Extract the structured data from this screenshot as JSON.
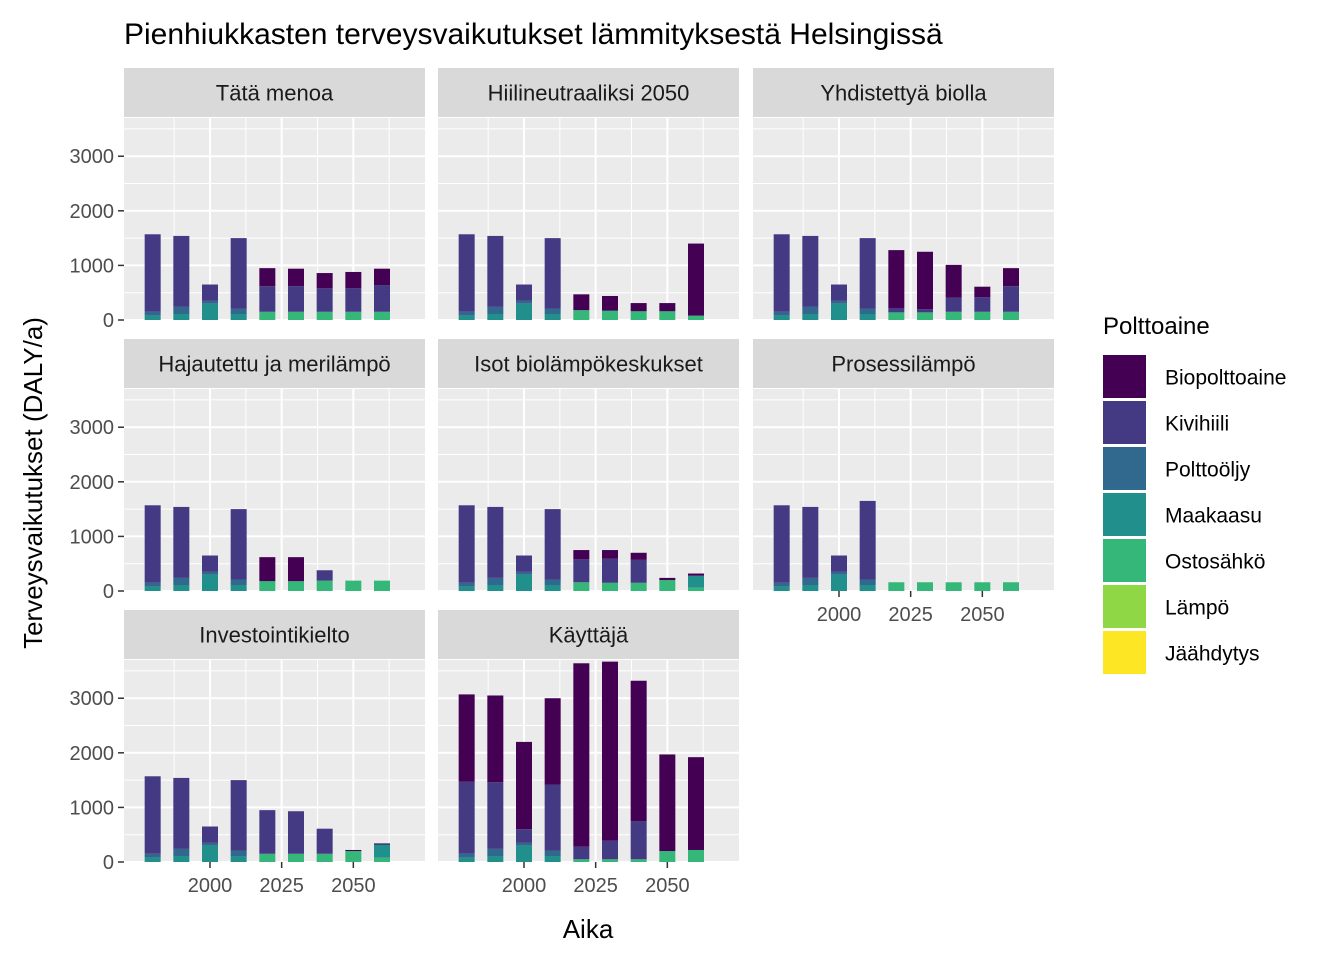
{
  "chart_data": {
    "type": "bar",
    "stacked": true,
    "title": "Pienhiukkasten terveysvaikutukset lämmityksestä Helsingissä",
    "xlabel": "Aika",
    "ylabel": "Terveysvaikutukset (DALY/a)",
    "ylim": [
      0,
      3700
    ],
    "yticks": [
      0,
      1000,
      2000,
      3000
    ],
    "xlim": [
      1970,
      2075
    ],
    "xticks": [
      2000,
      2025,
      2050
    ],
    "x": [
      1980,
      1990,
      2000,
      2010,
      2020,
      2030,
      2040,
      2050,
      2060
    ],
    "grid": true,
    "legend": {
      "title": "Polttoaine",
      "position": "right",
      "entries": [
        "Biopolttoaine",
        "Kivihiili",
        "Polttoöljy",
        "Maakaasu",
        "Ostosähkö",
        "Lämpö",
        "Jäähdytys"
      ]
    },
    "colors": {
      "Biopolttoaine": "#440154",
      "Kivihiili": "#443A83",
      "Polttoöljy": "#31688E",
      "Maakaasu": "#21908C",
      "Ostosähkö": "#35B779",
      "Lämpö": "#8FD744",
      "Jäähdytys": "#FDE725"
    },
    "panels": [
      {
        "title": "Tätä menoa",
        "series": [
          {
            "name": "Ostosähkö",
            "values": [
              0,
              0,
              0,
              0,
              150,
              150,
              150,
              150,
              150
            ]
          },
          {
            "name": "Maakaasu",
            "values": [
              80,
              110,
              300,
              110,
              0,
              0,
              0,
              0,
              0
            ]
          },
          {
            "name": "Polttoöljy",
            "values": [
              70,
              130,
              50,
              100,
              0,
              0,
              0,
              0,
              0
            ]
          },
          {
            "name": "Kivihiili",
            "values": [
              1420,
              1300,
              300,
              1290,
              470,
              470,
              430,
              430,
              490
            ]
          },
          {
            "name": "Biopolttoaine",
            "values": [
              0,
              0,
              0,
              0,
              330,
              320,
              280,
              300,
              300
            ]
          }
        ]
      },
      {
        "title": "Hiilineutraaliksi 2050",
        "series": [
          {
            "name": "Ostosähkö",
            "values": [
              0,
              0,
              0,
              0,
              180,
              170,
              160,
              160,
              80
            ]
          },
          {
            "name": "Maakaasu",
            "values": [
              80,
              110,
              300,
              110,
              0,
              0,
              0,
              0,
              0
            ]
          },
          {
            "name": "Polttoöljy",
            "values": [
              70,
              130,
              50,
              100,
              0,
              0,
              0,
              0,
              0
            ]
          },
          {
            "name": "Kivihiili",
            "values": [
              1420,
              1300,
              300,
              1290,
              0,
              0,
              0,
              0,
              0
            ]
          },
          {
            "name": "Biopolttoaine",
            "values": [
              0,
              0,
              0,
              0,
              290,
              270,
              150,
              150,
              1320
            ]
          }
        ]
      },
      {
        "title": "Yhdistettyä biolla",
        "series": [
          {
            "name": "Ostosähkö",
            "values": [
              0,
              0,
              0,
              0,
              140,
              140,
              150,
              150,
              150
            ]
          },
          {
            "name": "Maakaasu",
            "values": [
              80,
              110,
              300,
              110,
              0,
              0,
              0,
              0,
              0
            ]
          },
          {
            "name": "Polttoöljy",
            "values": [
              70,
              130,
              50,
              100,
              0,
              0,
              0,
              0,
              0
            ]
          },
          {
            "name": "Kivihiili",
            "values": [
              1420,
              1300,
              300,
              1290,
              80,
              60,
              260,
              270,
              470
            ]
          },
          {
            "name": "Biopolttoaine",
            "values": [
              0,
              0,
              0,
              0,
              1060,
              1050,
              600,
              190,
              330
            ]
          }
        ]
      },
      {
        "title": "Hajautettu ja merilämpö",
        "series": [
          {
            "name": "Ostosähkö",
            "values": [
              0,
              0,
              0,
              0,
              180,
              180,
              190,
              190,
              190
            ]
          },
          {
            "name": "Maakaasu",
            "values": [
              80,
              110,
              300,
              110,
              0,
              0,
              0,
              0,
              0
            ]
          },
          {
            "name": "Polttoöljy",
            "values": [
              70,
              130,
              50,
              100,
              0,
              0,
              0,
              0,
              0
            ]
          },
          {
            "name": "Kivihiili",
            "values": [
              1420,
              1300,
              300,
              1290,
              0,
              0,
              190,
              0,
              0
            ]
          },
          {
            "name": "Biopolttoaine",
            "values": [
              0,
              0,
              0,
              0,
              440,
              440,
              0,
              0,
              0
            ]
          }
        ]
      },
      {
        "title": "Isot biolämpökeskukset",
        "series": [
          {
            "name": "Ostosähkö",
            "values": [
              0,
              0,
              0,
              0,
              160,
              150,
              150,
              200,
              60
            ]
          },
          {
            "name": "Maakaasu",
            "values": [
              80,
              110,
              300,
              110,
              0,
              0,
              0,
              0,
              220
            ]
          },
          {
            "name": "Polttoöljy",
            "values": [
              70,
              130,
              50,
              100,
              0,
              0,
              0,
              0,
              0
            ]
          },
          {
            "name": "Kivihiili",
            "values": [
              1420,
              1300,
              300,
              1290,
              420,
              440,
              420,
              0,
              0
            ]
          },
          {
            "name": "Biopolttoaine",
            "values": [
              0,
              0,
              0,
              0,
              170,
              160,
              130,
              40,
              40
            ]
          }
        ]
      },
      {
        "title": "Prosessilämpö",
        "series": [
          {
            "name": "Ostosähkö",
            "values": [
              0,
              0,
              0,
              0,
              160,
              160,
              160,
              160,
              160
            ]
          },
          {
            "name": "Maakaasu",
            "values": [
              80,
              110,
              300,
              110,
              0,
              0,
              0,
              0,
              0
            ]
          },
          {
            "name": "Polttoöljy",
            "values": [
              70,
              130,
              50,
              100,
              0,
              0,
              0,
              0,
              0
            ]
          },
          {
            "name": "Kivihiili",
            "values": [
              1420,
              1300,
              300,
              1440,
              0,
              0,
              0,
              0,
              0
            ]
          },
          {
            "name": "Biopolttoaine",
            "values": [
              0,
              0,
              0,
              0,
              0,
              0,
              0,
              0,
              0
            ]
          }
        ]
      },
      {
        "title": "Investointikielto",
        "series": [
          {
            "name": "Ostosähkö",
            "values": [
              0,
              0,
              0,
              0,
              150,
              150,
              150,
              200,
              80
            ]
          },
          {
            "name": "Maakaasu",
            "values": [
              80,
              110,
              300,
              110,
              0,
              0,
              0,
              0,
              240
            ]
          },
          {
            "name": "Polttoöljy",
            "values": [
              70,
              130,
              50,
              100,
              0,
              0,
              0,
              0,
              0
            ]
          },
          {
            "name": "Kivihiili",
            "values": [
              1420,
              1300,
              300,
              1290,
              800,
              780,
              460,
              0,
              0
            ]
          },
          {
            "name": "Biopolttoaine",
            "values": [
              0,
              0,
              0,
              0,
              0,
              0,
              0,
              20,
              20
            ]
          }
        ]
      },
      {
        "title": "Käyttäjä",
        "series": [
          {
            "name": "Ostosähkö",
            "values": [
              0,
              0,
              0,
              0,
              50,
              50,
              50,
              200,
              220
            ]
          },
          {
            "name": "Maakaasu",
            "values": [
              80,
              110,
              300,
              110,
              0,
              0,
              0,
              0,
              0
            ]
          },
          {
            "name": "Polttoöljy",
            "values": [
              70,
              130,
              50,
              100,
              0,
              0,
              0,
              0,
              0
            ]
          },
          {
            "name": "Kivihiili",
            "values": [
              1320,
              1220,
              250,
              1210,
              230,
              340,
              700,
              0,
              0
            ]
          },
          {
            "name": "Biopolttoaine",
            "values": [
              1600,
              1590,
              1600,
              1580,
              3360,
              3280,
              2570,
              1770,
              1700
            ]
          }
        ]
      }
    ]
  }
}
